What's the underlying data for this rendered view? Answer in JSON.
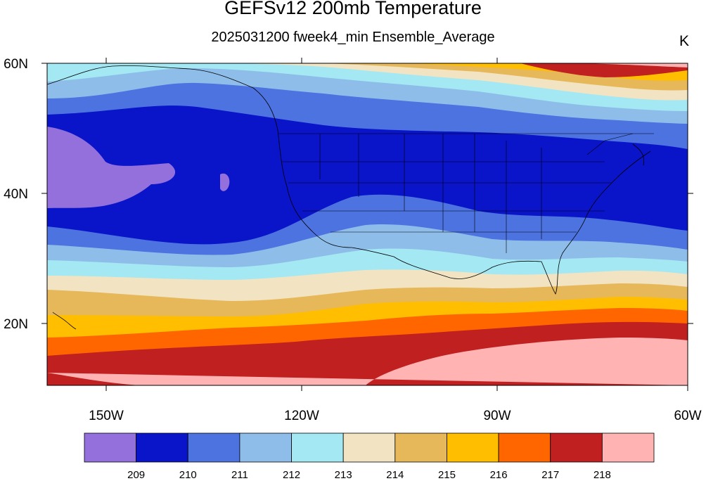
{
  "title": "GEFSv12 200mb Temperature",
  "subtitle": "2025031200 fweek4_min Ensemble_Average",
  "units": "K",
  "map": {
    "projection": "cylindrical equidistant",
    "lon_range": [
      -160,
      -60
    ],
    "lat_range": [
      10,
      60
    ],
    "x_tick_labels": [
      "150W",
      "120W",
      "90W",
      "60W"
    ],
    "y_tick_labels": [
      "60N",
      "40N",
      "20N"
    ],
    "boundaries": "coastlines, US states"
  },
  "colorbar": {
    "labels": [
      "209",
      "210",
      "211",
      "212",
      "213",
      "214",
      "215",
      "216",
      "217",
      "218"
    ],
    "colors": [
      "#9370DB",
      "#0A14C8",
      "#4C73E0",
      "#8FBDEA",
      "#A3E8F2",
      "#F2E4C2",
      "#E6B85A",
      "#FFBE00",
      "#FF6600",
      "#C0201F",
      "#FFB3B3"
    ]
  }
}
